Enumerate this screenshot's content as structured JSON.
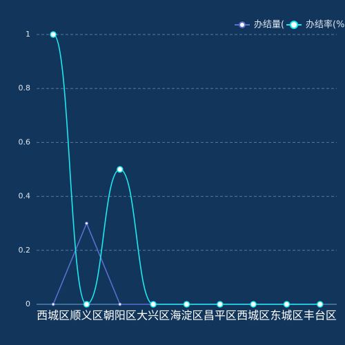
{
  "chart_data": {
    "type": "line",
    "categories": [
      "西城区",
      "顺义区",
      "朝阳区",
      "大兴区",
      "海淀区",
      "昌平区",
      "西城区",
      "东城区",
      "丰台区"
    ],
    "series": [
      {
        "name": "办结量(",
        "color": "#5b6fd0",
        "smooth": false,
        "values": [
          0,
          0.3,
          0,
          0,
          0,
          0,
          0,
          0,
          0
        ]
      },
      {
        "name": "办结率(%",
        "color": "#1de9f0",
        "smooth": true,
        "values": [
          1,
          0,
          0.5,
          0,
          0,
          0,
          0,
          0,
          0
        ]
      }
    ],
    "ylim": [
      0,
      1
    ],
    "yticks": [
      0,
      0.2,
      0.4,
      0.6,
      0.8,
      1
    ],
    "grid": true,
    "legend": "top-right"
  }
}
